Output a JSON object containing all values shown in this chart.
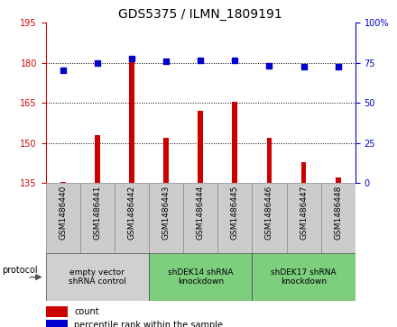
{
  "title": "GDS5375 / ILMN_1809191",
  "categories": [
    "GSM1486440",
    "GSM1486441",
    "GSM1486442",
    "GSM1486443",
    "GSM1486444",
    "GSM1486445",
    "GSM1486446",
    "GSM1486447",
    "GSM1486448"
  ],
  "bar_values": [
    135.5,
    153.0,
    180.5,
    152.0,
    162.0,
    165.5,
    152.0,
    143.0,
    137.0
  ],
  "scatter_values": [
    70.5,
    75.0,
    78.0,
    76.0,
    76.5,
    76.5,
    73.5,
    72.5,
    72.5
  ],
  "bar_color": "#cc0000",
  "scatter_color": "#0000cc",
  "ylim_left": [
    135,
    195
  ],
  "ylim_right": [
    0,
    100
  ],
  "yticks_left": [
    135,
    150,
    165,
    180,
    195
  ],
  "yticks_right": [
    0,
    25,
    50,
    75,
    100
  ],
  "ytick_labels_right": [
    "0",
    "25",
    "50",
    "75",
    "100%"
  ],
  "grid_values": [
    150,
    165,
    180
  ],
  "groups": [
    {
      "label": "empty vector\nshRNA control",
      "start": 0,
      "end": 3,
      "color": "#d0d0d0"
    },
    {
      "label": "shDEK14 shRNA\nknockdown",
      "start": 3,
      "end": 6,
      "color": "#7dce7d"
    },
    {
      "label": "shDEK17 shRNA\nknockdown",
      "start": 6,
      "end": 9,
      "color": "#7dce7d"
    }
  ],
  "legend_bar_label": "count",
  "legend_scatter_label": "percentile rank within the sample",
  "protocol_label": "protocol",
  "title_fontsize": 10,
  "tick_fontsize": 7,
  "bar_width": 0.15,
  "xtick_box_color": "#cccccc",
  "xtick_box_edge": "#888888"
}
